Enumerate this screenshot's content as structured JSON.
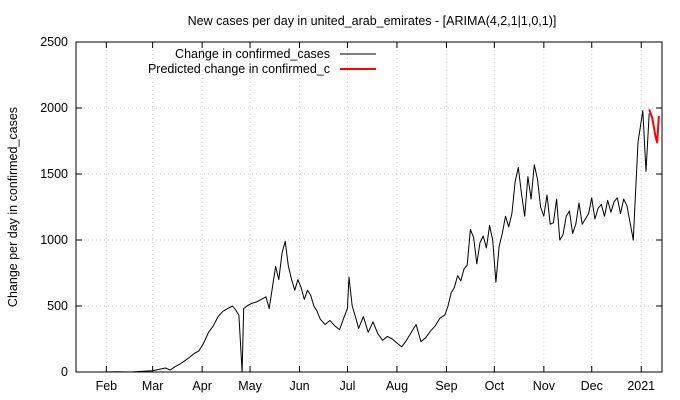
{
  "chart_data": {
    "type": "line",
    "title": "New cases per day in united_arab_emirates -  [ARIMA(4,2,1|1,0,1)]",
    "xlabel": "",
    "ylabel": "Change per day in confirmed_cases",
    "ylim": [
      0,
      2500
    ],
    "xlim": [
      "2020-01-13",
      "2021-01-14"
    ],
    "yticks": [
      "0",
      "500",
      "1000",
      "1500",
      "2000",
      "2500"
    ],
    "yticks_values": [
      0,
      500,
      1000,
      1500,
      2000,
      2500
    ],
    "xticks": [
      "Feb",
      "Mar",
      "Apr",
      "May",
      "Jun",
      "Jul",
      "Aug",
      "Sep",
      "Oct",
      "Nov",
      "Dec",
      "2021"
    ],
    "xticks_values": [
      "2020-02-01",
      "2020-03-01",
      "2020-04-01",
      "2020-05-01",
      "2020-06-01",
      "2020-07-01",
      "2020-08-01",
      "2020-09-01",
      "2020-10-01",
      "2020-11-01",
      "2020-12-01",
      "2021-01-01"
    ],
    "grid": true,
    "legend_position": "top-left",
    "series": [
      {
        "name": "Change in confirmed_cases",
        "color": "#000000",
        "x": [
          "2020-01-29",
          "2020-02-08",
          "2020-02-16",
          "2020-02-24",
          "2020-03-01",
          "2020-03-05",
          "2020-03-09",
          "2020-03-12",
          "2020-03-15",
          "2020-03-18",
          "2020-03-21",
          "2020-03-24",
          "2020-03-27",
          "2020-03-30",
          "2020-04-02",
          "2020-04-05",
          "2020-04-08",
          "2020-04-11",
          "2020-04-14",
          "2020-04-17",
          "2020-04-20",
          "2020-04-22",
          "2020-04-24",
          "2020-04-26",
          "2020-04-27",
          "2020-04-29",
          "2020-05-02",
          "2020-05-05",
          "2020-05-08",
          "2020-05-11",
          "2020-05-13",
          "2020-05-15",
          "2020-05-17",
          "2020-05-19",
          "2020-05-21",
          "2020-05-23",
          "2020-05-25",
          "2020-05-27",
          "2020-05-29",
          "2020-05-31",
          "2020-06-02",
          "2020-06-04",
          "2020-06-06",
          "2020-06-08",
          "2020-06-10",
          "2020-06-12",
          "2020-06-14",
          "2020-06-17",
          "2020-06-20",
          "2020-06-23",
          "2020-06-26",
          "2020-06-29",
          "2020-07-01",
          "2020-07-02",
          "2020-07-04",
          "2020-07-06",
          "2020-07-08",
          "2020-07-11",
          "2020-07-14",
          "2020-07-17",
          "2020-07-20",
          "2020-07-23",
          "2020-07-26",
          "2020-07-29",
          "2020-08-01",
          "2020-08-04",
          "2020-08-07",
          "2020-08-10",
          "2020-08-13",
          "2020-08-16",
          "2020-08-19",
          "2020-08-22",
          "2020-08-25",
          "2020-08-28",
          "2020-08-31",
          "2020-09-02",
          "2020-09-04",
          "2020-09-06",
          "2020-09-08",
          "2020-09-10",
          "2020-09-12",
          "2020-09-14",
          "2020-09-16",
          "2020-09-18",
          "2020-09-20",
          "2020-09-22",
          "2020-09-24",
          "2020-09-26",
          "2020-09-28",
          "2020-09-30",
          "2020-10-02",
          "2020-10-04",
          "2020-10-06",
          "2020-10-08",
          "2020-10-10",
          "2020-10-12",
          "2020-10-14",
          "2020-10-16",
          "2020-10-18",
          "2020-10-20",
          "2020-10-22",
          "2020-10-24",
          "2020-10-26",
          "2020-10-28",
          "2020-10-30",
          "2020-11-01",
          "2020-11-03",
          "2020-11-05",
          "2020-11-07",
          "2020-11-09",
          "2020-11-11",
          "2020-11-13",
          "2020-11-15",
          "2020-11-17",
          "2020-11-19",
          "2020-11-21",
          "2020-11-23",
          "2020-11-25",
          "2020-11-27",
          "2020-11-29",
          "2020-12-01",
          "2020-12-03",
          "2020-12-05",
          "2020-12-07",
          "2020-12-09",
          "2020-12-11",
          "2020-12-13",
          "2020-12-15",
          "2020-12-17",
          "2020-12-19",
          "2020-12-21",
          "2020-12-23",
          "2020-12-25",
          "2020-12-27",
          "2020-12-28",
          "2020-12-30",
          "2021-01-01",
          "2021-01-02",
          "2021-01-04",
          "2021-01-06"
        ],
        "y": [
          0,
          2,
          0,
          5,
          10,
          20,
          30,
          15,
          40,
          60,
          85,
          110,
          140,
          160,
          220,
          300,
          350,
          420,
          460,
          480,
          500,
          470,
          430,
          0,
          480,
          500,
          520,
          530,
          550,
          570,
          480,
          640,
          800,
          700,
          900,
          990,
          800,
          700,
          620,
          700,
          640,
          550,
          620,
          580,
          500,
          460,
          400,
          360,
          390,
          350,
          320,
          420,
          480,
          720,
          500,
          420,
          330,
          420,
          300,
          380,
          290,
          240,
          270,
          250,
          220,
          190,
          240,
          300,
          360,
          230,
          260,
          310,
          350,
          410,
          430,
          500,
          600,
          640,
          730,
          690,
          780,
          810,
          1080,
          1020,
          820,
          980,
          1030,
          940,
          1110,
          1000,
          680,
          950,
          1050,
          1180,
          1100,
          1200,
          1440,
          1550,
          1350,
          1180,
          1480,
          1310,
          1570,
          1460,
          1250,
          1180,
          1340,
          1120,
          1130,
          1310,
          1000,
          1040,
          1180,
          1220,
          1050,
          1120,
          1280,
          1120,
          1160,
          1200,
          1320,
          1160,
          1240,
          1270,
          1180,
          1300,
          1210,
          1290,
          1320,
          1200,
          1310,
          1260,
          1130,
          1000,
          1260,
          1740,
          1900,
          1980,
          1520,
          1960
        ]
      },
      {
        "name": "Predicted change in confirmed_c",
        "color": "#ff0000",
        "x": [
          "2021-01-06",
          "2021-01-08",
          "2021-01-10",
          "2021-01-11",
          "2021-01-12"
        ],
        "y": [
          1990,
          1920,
          1780,
          1740,
          1940
        ]
      }
    ]
  }
}
